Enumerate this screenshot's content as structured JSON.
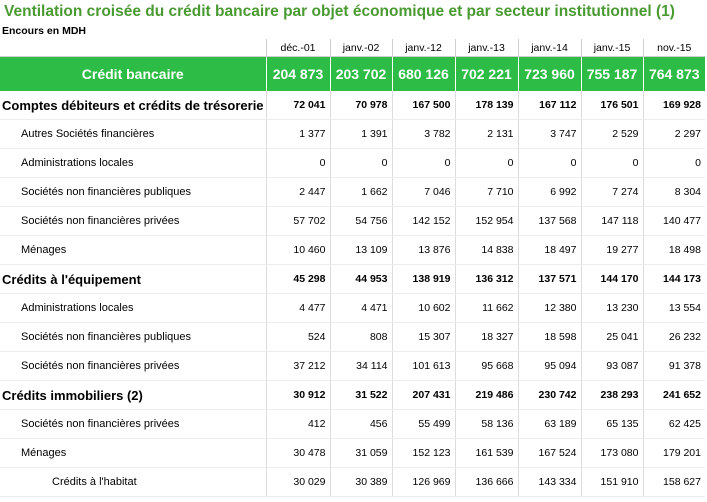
{
  "title": "Ventilation croisée du crédit bancaire par objet économique et par secteur institutionnel (1)",
  "unit": "Encours en MDH",
  "columns": [
    "déc.-01",
    "janv.-02",
    "janv.-12",
    "janv.-13",
    "janv.-14",
    "janv.-15",
    "nov.-15"
  ],
  "total": {
    "label": "Crédit bancaire",
    "values": [
      "204 873",
      "203 702",
      "680 126",
      "702 221",
      "723 960",
      "755 187",
      "764 873"
    ]
  },
  "rows": [
    {
      "label": "Comptes débiteurs et crédits de trésorerie",
      "values": [
        "72 041",
        "70 978",
        "167 500",
        "178 139",
        "167 112",
        "176 501",
        "169 928"
      ]
    },
    {
      "label": "Autres Sociétés financières",
      "values": [
        "1 377",
        "1 391",
        "3 782",
        "2 131",
        "3 747",
        "2 529",
        "2 297"
      ]
    },
    {
      "label": "Administrations locales",
      "values": [
        "0",
        "0",
        "0",
        "0",
        "0",
        "0",
        "0"
      ]
    },
    {
      "label": "Sociétés non financières publiques",
      "values": [
        "2 447",
        "1 662",
        "7 046",
        "7 710",
        "6 992",
        "7 274",
        "8 304"
      ]
    },
    {
      "label": "Sociétés non financières privées",
      "values": [
        "57 702",
        "54 756",
        "142 152",
        "152 954",
        "137 568",
        "147 118",
        "140 477"
      ]
    },
    {
      "label": "Ménages",
      "values": [
        "10 460",
        "13 109",
        "13 876",
        "14 838",
        "18 497",
        "19 277",
        "18 498"
      ]
    },
    {
      "label": "Crédits à l'équipement",
      "values": [
        "45 298",
        "44 953",
        "138 919",
        "136 312",
        "137 571",
        "144 170",
        "144 173"
      ]
    },
    {
      "label": "Administrations locales",
      "values": [
        "4 477",
        "4 471",
        "10 602",
        "11 662",
        "12 380",
        "13 230",
        "13 554"
      ]
    },
    {
      "label": "Sociétés non financières publiques",
      "values": [
        "524",
        "808",
        "15 307",
        "18 327",
        "18 598",
        "25 041",
        "26 232"
      ]
    },
    {
      "label": "Sociétés non financières privées",
      "values": [
        "37 212",
        "34 114",
        "101 613",
        "95 668",
        "95 094",
        "93 087",
        "91 378"
      ]
    },
    {
      "label": "Crédits immobiliers (2)",
      "values": [
        "30 912",
        "31 522",
        "207 431",
        "219 486",
        "230 742",
        "238 293",
        "241 652"
      ]
    },
    {
      "label": "Sociétés non financières privées",
      "values": [
        "412",
        "456",
        "55 499",
        "58 136",
        "63 189",
        "65 135",
        "62 425"
      ]
    },
    {
      "label": "Ménages",
      "values": [
        "30 478",
        "31 059",
        "152 123",
        "161 539",
        "167 524",
        "173 080",
        "179 201"
      ]
    },
    {
      "label": "Crédits à l'habitat",
      "values": [
        "30 029",
        "30 389",
        "126 969",
        "136 666",
        "143 334",
        "151 910",
        "158 627"
      ]
    }
  ],
  "colors": {
    "title": "#4a9a32",
    "total_bg": "#2dbd46",
    "total_text": "#ffffff"
  }
}
